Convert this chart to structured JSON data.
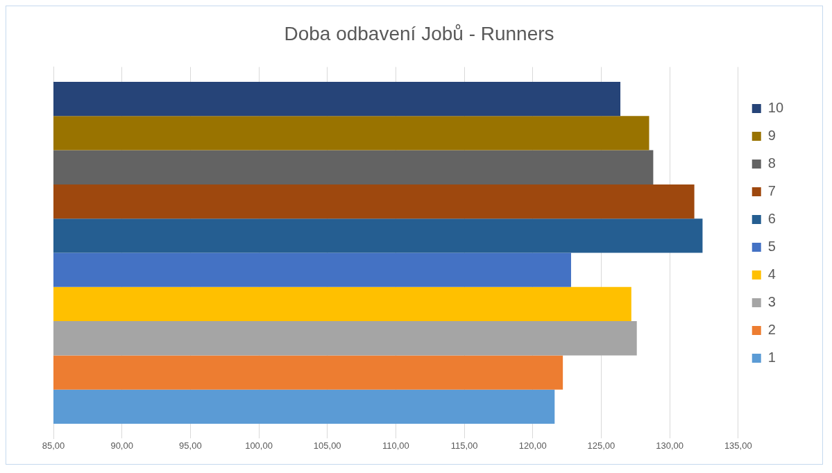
{
  "chart_data": {
    "type": "bar",
    "orientation": "horizontal",
    "title": "Doba odbavení Jobů - Runners",
    "categories": [
      null
    ],
    "series": [
      {
        "name": "1",
        "color": "#5b9bd5",
        "values": [
          121.6
        ]
      },
      {
        "name": "2",
        "color": "#ed7d31",
        "values": [
          122.2
        ]
      },
      {
        "name": "3",
        "color": "#a5a5a5",
        "values": [
          127.6
        ]
      },
      {
        "name": "4",
        "color": "#ffc000",
        "values": [
          127.2
        ]
      },
      {
        "name": "5",
        "color": "#4472c4",
        "values": [
          122.8
        ]
      },
      {
        "name": "6",
        "color": "#255e91",
        "values": [
          132.4
        ]
      },
      {
        "name": "7",
        "color": "#9e480e",
        "values": [
          131.8
        ]
      },
      {
        "name": "8",
        "color": "#636363",
        "values": [
          128.8
        ]
      },
      {
        "name": "9",
        "color": "#997300",
        "values": [
          128.5
        ]
      },
      {
        "name": "10",
        "color": "#264478",
        "values": [
          126.4
        ]
      }
    ],
    "xlim": [
      85,
      135
    ],
    "xticks": [
      {
        "value": 85,
        "label": "85,00"
      },
      {
        "value": 90,
        "label": "90,00"
      },
      {
        "value": 95,
        "label": "95,00"
      },
      {
        "value": 100,
        "label": "100,00"
      },
      {
        "value": 105,
        "label": "105,00"
      },
      {
        "value": 110,
        "label": "110,00"
      },
      {
        "value": 115,
        "label": "115,00"
      },
      {
        "value": 120,
        "label": "120,00"
      },
      {
        "value": 125,
        "label": "125,00"
      },
      {
        "value": 130,
        "label": "130,00"
      },
      {
        "value": 135,
        "label": "135,00"
      }
    ],
    "grid": "x",
    "legend": "right"
  }
}
